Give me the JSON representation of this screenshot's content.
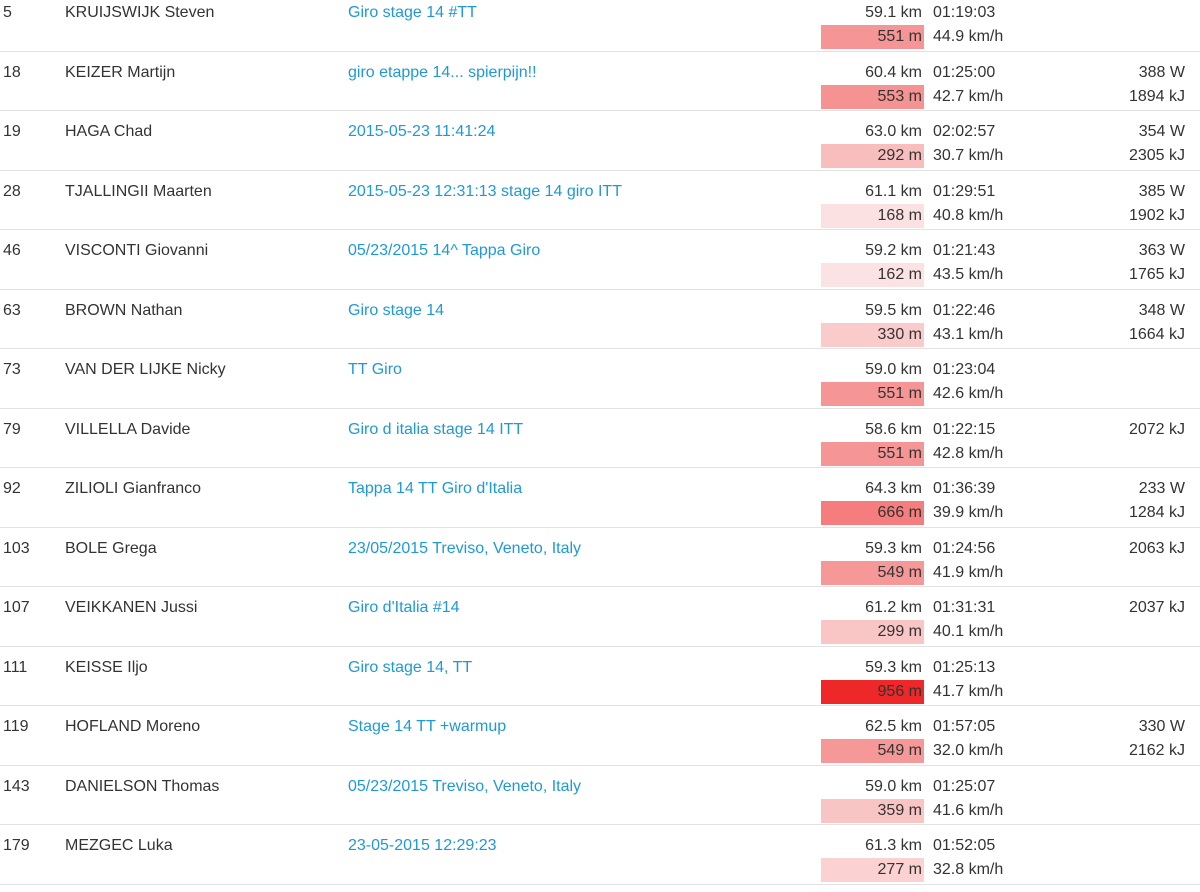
{
  "page": {
    "background_color": "#ffffff",
    "text_color": "#333333",
    "link_color": "#1f99d6",
    "row_divider_color": "#e2e2e2",
    "elevation_max_color": "#ee2828",
    "description": "Rider results list, Giro d'Italia 2015 stage 14 individual time trial activities"
  },
  "rows": [
    {
      "rank": "5",
      "name": "KRUIJSWIJK Steven",
      "activity_title": "Giro stage 14 #TT",
      "distance": "59.1 km",
      "duration": "01:19:03",
      "elevation": "551 m",
      "speed": "44.9 km/h",
      "power": "",
      "energy": "",
      "elevation_color": "#f59595"
    },
    {
      "rank": "18",
      "name": "KEIZER Martijn",
      "activity_title": "giro etappe 14... spierpijn!!",
      "distance": "60.4 km",
      "duration": "01:25:00",
      "elevation": "553 m",
      "speed": "42.7 km/h",
      "power": "388 W",
      "energy": "1894 kJ",
      "elevation_color": "#f59393"
    },
    {
      "rank": "19",
      "name": "HAGA Chad",
      "activity_title": "2015-05-23 11:41:24",
      "distance": "63.0 km",
      "duration": "02:02:57",
      "elevation": "292 m",
      "speed": "30.7 km/h",
      "power": "354 W",
      "energy": "2305 kJ",
      "elevation_color": "#f8bebe"
    },
    {
      "rank": "28",
      "name": "TJALLINGII Maarten",
      "activity_title": "2015-05-23 12:31:13 stage 14 giro ITT",
      "distance": "61.1 km",
      "duration": "01:29:51",
      "elevation": "168 m",
      "speed": "40.8 km/h",
      "power": "385 W",
      "energy": "1902 kJ",
      "elevation_color": "#fbe1e1"
    },
    {
      "rank": "46",
      "name": "VISCONTI Giovanni",
      "activity_title": "05/23/2015 14^ Tappa Giro",
      "distance": "59.2 km",
      "duration": "01:21:43",
      "elevation": "162 m",
      "speed": "43.5 km/h",
      "power": "363 W",
      "energy": "1765 kJ",
      "elevation_color": "#fbe3e3"
    },
    {
      "rank": "63",
      "name": "BROWN Nathan",
      "activity_title": "Giro stage 14",
      "distance": "59.5 km",
      "duration": "01:22:46",
      "elevation": "330 m",
      "speed": "43.1 km/h",
      "power": "348 W",
      "energy": "1664 kJ",
      "elevation_color": "#f9cbcb"
    },
    {
      "rank": "73",
      "name": "VAN DER LIJKE Nicky",
      "activity_title": "TT Giro",
      "distance": "59.0 km",
      "duration": "01:23:04",
      "elevation": "551 m",
      "speed": "42.6 km/h",
      "power": "",
      "energy": "",
      "elevation_color": "#f59595"
    },
    {
      "rank": "79",
      "name": "VILLELLA Davide",
      "activity_title": "Giro d italia stage 14 ITT",
      "distance": "58.6 km",
      "duration": "01:22:15",
      "elevation": "551 m",
      "speed": "42.8 km/h",
      "power": "",
      "energy": "2072 kJ",
      "elevation_color": "#f59595"
    },
    {
      "rank": "92",
      "name": "ZILIOLI Gianfranco",
      "activity_title": "Tappa 14 TT Giro d'Italia",
      "distance": "64.3 km",
      "duration": "01:36:39",
      "elevation": "666 m",
      "speed": "39.9 km/h",
      "power": "233 W",
      "energy": "1284 kJ",
      "elevation_color": "#f57d7d"
    },
    {
      "rank": "103",
      "name": "BOLE Grega",
      "activity_title": "23/05/2015 Treviso, Veneto, Italy",
      "distance": "59.3 km",
      "duration": "01:24:56",
      "elevation": "549 m",
      "speed": "41.9 km/h",
      "power": "",
      "energy": "2063 kJ",
      "elevation_color": "#f69898"
    },
    {
      "rank": "107",
      "name": "VEIKKANEN Jussi",
      "activity_title": "Giro d'Italia #14",
      "distance": "61.2 km",
      "duration": "01:31:31",
      "elevation": "299 m",
      "speed": "40.1 km/h",
      "power": "",
      "energy": "2037 kJ",
      "elevation_color": "#f9c5c5"
    },
    {
      "rank": "111",
      "name": "KEISSE Iljo",
      "activity_title": "Giro stage 14, TT",
      "distance": "59.3 km",
      "duration": "01:25:13",
      "elevation": "956 m",
      "speed": "41.7 km/h",
      "power": "",
      "energy": "",
      "elevation_color": "#ee2828"
    },
    {
      "rank": "119",
      "name": "HOFLAND Moreno",
      "activity_title": "Stage 14 TT +warmup",
      "distance": "62.5 km",
      "duration": "01:57:05",
      "elevation": "549 m",
      "speed": "32.0 km/h",
      "power": "330 W",
      "energy": "2162 kJ",
      "elevation_color": "#f69898"
    },
    {
      "rank": "143",
      "name": "DANIELSON Thomas",
      "activity_title": "05/23/2015 Treviso, Veneto, Italy",
      "distance": "59.0 km",
      "duration": "01:25:07",
      "elevation": "359 m",
      "speed": "41.6 km/h",
      "power": "",
      "energy": "",
      "elevation_color": "#f9c4c4"
    },
    {
      "rank": "179",
      "name": "MEZGEC Luka",
      "activity_title": "23-05-2015 12:29:23",
      "distance": "61.3 km",
      "duration": "01:52:05",
      "elevation": "277 m",
      "speed": "32.8 km/h",
      "power": "",
      "energy": "",
      "elevation_color": "#fbd1d1"
    }
  ]
}
